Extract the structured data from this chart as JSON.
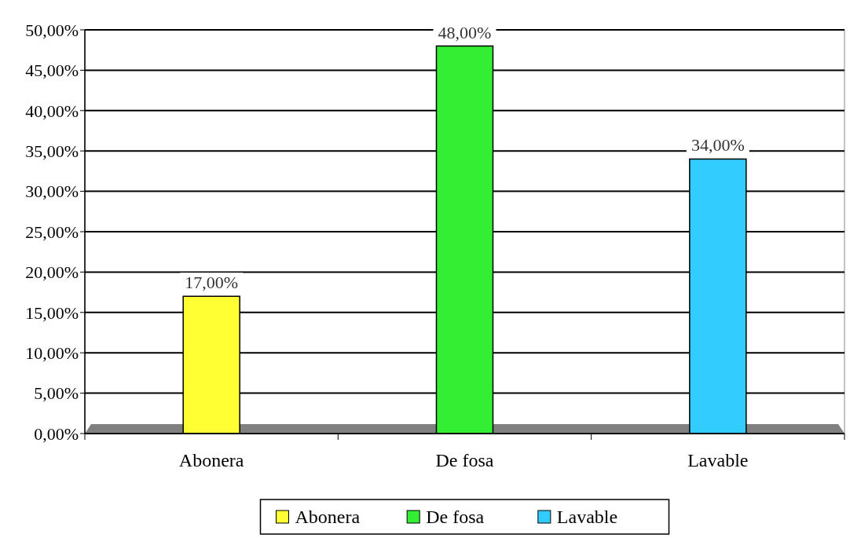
{
  "chart_data": {
    "type": "bar",
    "categories": [
      "Abonera",
      "De fosa",
      "Lavable"
    ],
    "series": [
      {
        "name": "Abonera",
        "color": "#ffff33",
        "values": [
          17,
          null,
          null
        ],
        "value_labels": [
          "17,00%",
          null,
          null
        ]
      },
      {
        "name": "De fosa",
        "color": "#33ee33",
        "values": [
          null,
          48,
          null
        ],
        "value_labels": [
          null,
          "48,00%",
          null
        ]
      },
      {
        "name": "Lavable",
        "color": "#33ccff",
        "values": [
          null,
          null,
          34
        ],
        "value_labels": [
          null,
          null,
          "34,00%"
        ]
      }
    ],
    "ylim": [
      0,
      50
    ],
    "yticks": [
      {
        "value": 0,
        "label": "0,00%"
      },
      {
        "value": 5,
        "label": "5,00%"
      },
      {
        "value": 10,
        "label": "10,00%"
      },
      {
        "value": 15,
        "label": "15,00%"
      },
      {
        "value": 20,
        "label": "20,00%"
      },
      {
        "value": 25,
        "label": "25,00%"
      },
      {
        "value": 30,
        "label": "30,00%"
      },
      {
        "value": 35,
        "label": "35,00%"
      },
      {
        "value": 40,
        "label": "40,00%"
      },
      {
        "value": 45,
        "label": "45,00%"
      },
      {
        "value": 50,
        "label": "50,00%"
      }
    ],
    "grid": "y",
    "legend": "bottom"
  }
}
